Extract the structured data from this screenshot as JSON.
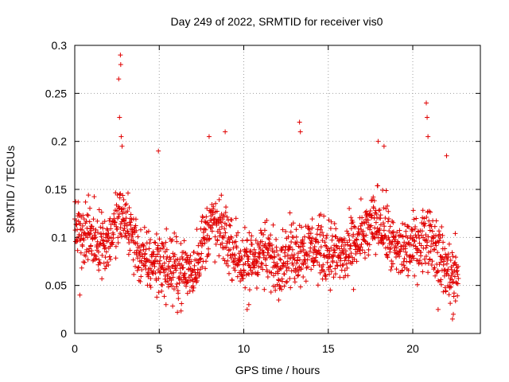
{
  "chart_data": {
    "type": "scatter",
    "title": "Day 249 of 2022, SRMTID for receiver vis0",
    "xlabel": "GPS time / hours",
    "ylabel": "SRMTID / TECUs",
    "xlim": [
      0,
      24
    ],
    "ylim": [
      0,
      0.3
    ],
    "xticks": [
      0,
      5,
      10,
      15,
      20
    ],
    "xtick_labels": [
      "0",
      "5",
      "10",
      "15",
      "20"
    ],
    "yticks": [
      0,
      0.05,
      0.1,
      0.15,
      0.2,
      0.25,
      0.3
    ],
    "ytick_labels": [
      "0",
      "0.05",
      "0.1",
      "0.15",
      "0.2",
      "0.25",
      "0.3"
    ],
    "grid": true,
    "marker": "+",
    "marker_color": "#e00000",
    "x_data_range": [
      0,
      22.7
    ],
    "series": [
      {
        "name": "vis0",
        "trend": [
          {
            "x": 0.0,
            "y": 0.11
          },
          {
            "x": 1.0,
            "y": 0.1
          },
          {
            "x": 2.0,
            "y": 0.095
          },
          {
            "x": 2.6,
            "y": 0.12
          },
          {
            "x": 3.0,
            "y": 0.12
          },
          {
            "x": 4.0,
            "y": 0.075
          },
          {
            "x": 5.0,
            "y": 0.075
          },
          {
            "x": 6.0,
            "y": 0.065
          },
          {
            "x": 7.0,
            "y": 0.065
          },
          {
            "x": 8.0,
            "y": 0.115
          },
          {
            "x": 9.0,
            "y": 0.1
          },
          {
            "x": 10.0,
            "y": 0.07
          },
          {
            "x": 11.0,
            "y": 0.085
          },
          {
            "x": 12.0,
            "y": 0.075
          },
          {
            "x": 13.0,
            "y": 0.085
          },
          {
            "x": 14.0,
            "y": 0.09
          },
          {
            "x": 15.0,
            "y": 0.085
          },
          {
            "x": 16.0,
            "y": 0.08
          },
          {
            "x": 17.0,
            "y": 0.1
          },
          {
            "x": 18.0,
            "y": 0.12
          },
          {
            "x": 19.0,
            "y": 0.085
          },
          {
            "x": 20.0,
            "y": 0.09
          },
          {
            "x": 21.0,
            "y": 0.105
          },
          {
            "x": 22.0,
            "y": 0.065
          },
          {
            "x": 22.7,
            "y": 0.06
          }
        ],
        "spread": 0.03,
        "points": 1600,
        "highlights": [
          {
            "x": 2.6,
            "y": 0.265
          },
          {
            "x": 2.65,
            "y": 0.225
          },
          {
            "x": 2.7,
            "y": 0.29
          },
          {
            "x": 2.72,
            "y": 0.28
          },
          {
            "x": 2.75,
            "y": 0.205
          },
          {
            "x": 2.8,
            "y": 0.195
          },
          {
            "x": 4.95,
            "y": 0.19
          },
          {
            "x": 7.95,
            "y": 0.205
          },
          {
            "x": 8.9,
            "y": 0.21
          },
          {
            "x": 13.3,
            "y": 0.22
          },
          {
            "x": 13.35,
            "y": 0.21
          },
          {
            "x": 18.3,
            "y": 0.195
          },
          {
            "x": 17.95,
            "y": 0.2
          },
          {
            "x": 20.8,
            "y": 0.24
          },
          {
            "x": 20.85,
            "y": 0.225
          },
          {
            "x": 20.9,
            "y": 0.205
          },
          {
            "x": 22.0,
            "y": 0.185
          },
          {
            "x": 22.35,
            "y": 0.015
          },
          {
            "x": 22.4,
            "y": 0.02
          },
          {
            "x": 21.5,
            "y": 0.025
          },
          {
            "x": 0.3,
            "y": 0.04
          },
          {
            "x": 5.4,
            "y": 0.03
          },
          {
            "x": 10.2,
            "y": 0.025
          },
          {
            "x": 10.3,
            "y": 0.03
          }
        ]
      }
    ]
  }
}
